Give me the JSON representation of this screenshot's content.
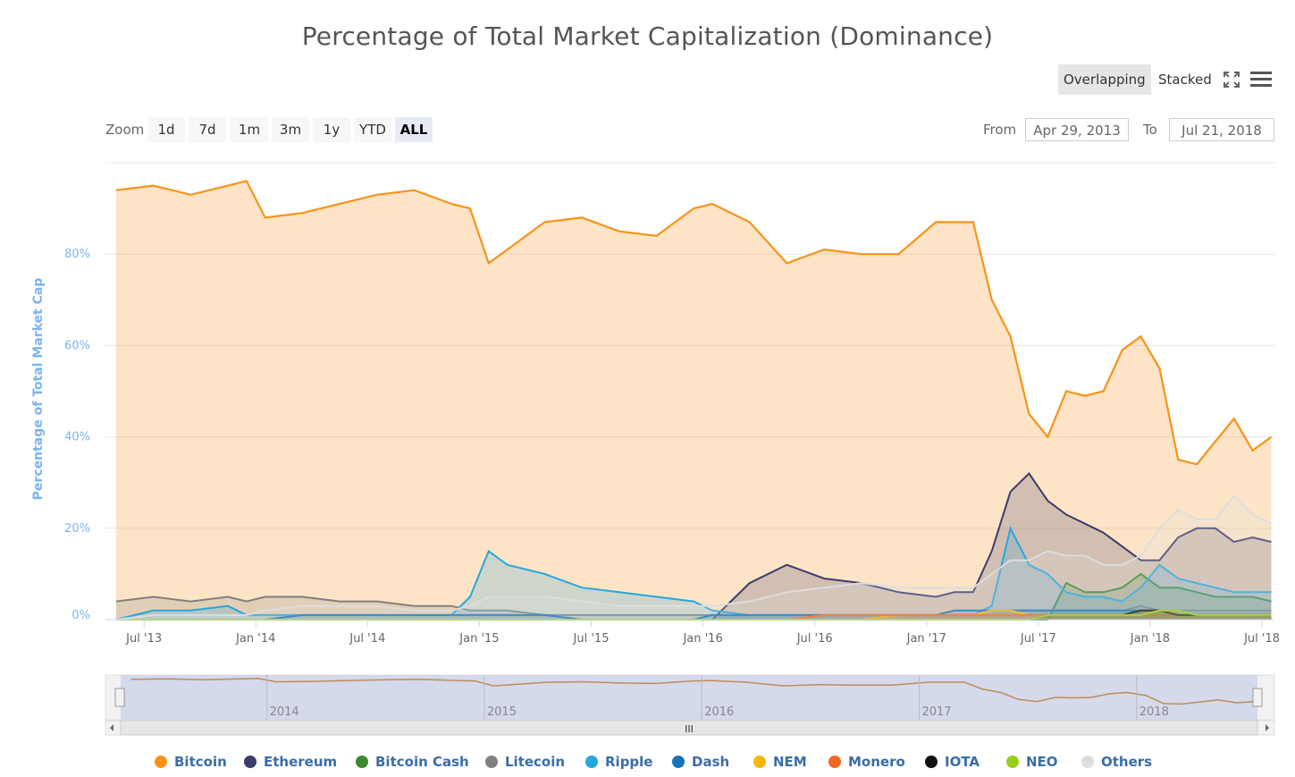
{
  "title": "Percentage of Total Market Capitalization (Dominance)",
  "toolbar": {
    "overlapping": "Overlapping",
    "stacked": "Stacked",
    "active_mode": "Overlapping",
    "fullscreen_icon": "fullscreen-icon",
    "menu_icon": "hamburger-menu-icon"
  },
  "zoom": {
    "label": "Zoom",
    "buttons": [
      "1d",
      "7d",
      "1m",
      "3m",
      "1y",
      "YTD",
      "ALL"
    ],
    "active": "ALL"
  },
  "range": {
    "from_label": "From",
    "from_value": "Apr 29, 2013",
    "to_label": "To",
    "to_value": "Jul 21, 2018"
  },
  "colors": {
    "Bitcoin": "#f7931a",
    "Ethereum": "#3c3c6d",
    "Bitcoin Cash": "#3a8a32",
    "Litecoin": "#808080",
    "Ripple": "#27a6dd",
    "Dash": "#1474bb",
    "NEM": "#f7b512",
    "Monero": "#f26722",
    "IOTA": "#111111",
    "NEO": "#9acd1a",
    "Others": "#dddddd"
  },
  "chart_data": {
    "type": "area",
    "title": "Percentage of Total Market Capitalization (Dominance)",
    "ylabel": "Percentage of Total Market Cap",
    "ylim": [
      0,
      100
    ],
    "yticks": [
      "0%",
      "20%",
      "40%",
      "60%",
      "80%"
    ],
    "xticks": [
      "Jul '13",
      "Jan '14",
      "Jul '14",
      "Jan '15",
      "Jul '15",
      "Jan '16",
      "Jul '16",
      "Jan '17",
      "Jul '17",
      "Jan '18",
      "Jul '18"
    ],
    "navigator_ticks": [
      "2014",
      "2015",
      "2016",
      "2017",
      "2018"
    ],
    "legend_position": "bottom",
    "x": [
      "2013-05",
      "2013-07",
      "2013-09",
      "2013-11",
      "2013-12",
      "2014-01",
      "2014-03",
      "2014-05",
      "2014-07",
      "2014-09",
      "2014-11",
      "2014-12",
      "2015-01",
      "2015-02",
      "2015-04",
      "2015-06",
      "2015-08",
      "2015-10",
      "2015-12",
      "2016-01",
      "2016-03",
      "2016-05",
      "2016-07",
      "2016-09",
      "2016-11",
      "2017-01",
      "2017-02",
      "2017-03",
      "2017-04",
      "2017-05",
      "2017-06",
      "2017-07",
      "2017-08",
      "2017-09",
      "2017-10",
      "2017-11",
      "2017-12",
      "2018-01",
      "2018-02",
      "2018-03",
      "2018-04",
      "2018-05",
      "2018-06",
      "2018-07"
    ],
    "series": [
      {
        "name": "Bitcoin",
        "values": [
          94,
          95,
          93,
          95,
          96,
          88,
          89,
          91,
          93,
          94,
          91,
          90,
          78,
          81,
          87,
          88,
          85,
          84,
          90,
          91,
          87,
          78,
          81,
          80,
          80,
          87,
          87,
          87,
          70,
          62,
          45,
          40,
          50,
          49,
          50,
          59,
          62,
          55,
          35,
          34,
          39,
          44,
          37,
          40
        ]
      },
      {
        "name": "Ethereum",
        "values": [
          0,
          0,
          0,
          0,
          0,
          0,
          0,
          0,
          0,
          0,
          0,
          0,
          0,
          0,
          0,
          0,
          0,
          0,
          0,
          0,
          8,
          12,
          9,
          8,
          6,
          5,
          6,
          6,
          15,
          28,
          32,
          26,
          23,
          21,
          19,
          16,
          13,
          13,
          18,
          20,
          20,
          17,
          18,
          17
        ]
      },
      {
        "name": "Bitcoin Cash",
        "values": [
          0,
          0,
          0,
          0,
          0,
          0,
          0,
          0,
          0,
          0,
          0,
          0,
          0,
          0,
          0,
          0,
          0,
          0,
          0,
          0,
          0,
          0,
          0,
          0,
          0,
          0,
          0,
          0,
          0,
          0,
          0,
          0,
          8,
          6,
          6,
          7,
          10,
          7,
          7,
          6,
          5,
          5,
          5,
          4
        ]
      },
      {
        "name": "Litecoin",
        "values": [
          4,
          5,
          4,
          5,
          4,
          5,
          5,
          4,
          4,
          3,
          3,
          2,
          2,
          2,
          1,
          1,
          1,
          1,
          1,
          1,
          1,
          1,
          1,
          1,
          1,
          1,
          1,
          1,
          2,
          2,
          2,
          2,
          2,
          2,
          2,
          2,
          3,
          2,
          2,
          2,
          2,
          2,
          2,
          2
        ]
      },
      {
        "name": "Ripple",
        "values": [
          0,
          2,
          2,
          3,
          1,
          1,
          1,
          1,
          1,
          1,
          1,
          5,
          15,
          12,
          10,
          7,
          6,
          5,
          4,
          2,
          1,
          1,
          1,
          1,
          1,
          1,
          1,
          1,
          3,
          20,
          12,
          10,
          6,
          5,
          5,
          4,
          7,
          12,
          9,
          8,
          7,
          6,
          6,
          6
        ]
      },
      {
        "name": "Dash",
        "values": [
          0,
          0,
          0,
          0,
          0,
          0,
          1,
          1,
          1,
          1,
          1,
          1,
          1,
          1,
          1,
          0,
          0,
          0,
          0,
          1,
          1,
          1,
          1,
          1,
          1,
          1,
          2,
          2,
          2,
          2,
          2,
          2,
          2,
          2,
          2,
          2,
          2,
          2,
          1,
          1,
          1,
          1,
          1,
          1
        ]
      },
      {
        "name": "NEM",
        "values": [
          0,
          0,
          0,
          0,
          0,
          0,
          0,
          0,
          0,
          0,
          0,
          0,
          0,
          0,
          0,
          0,
          0,
          0,
          0,
          0,
          0,
          0,
          0,
          0,
          1,
          1,
          1,
          1,
          2,
          2,
          1,
          1,
          1,
          1,
          1,
          1,
          2,
          2,
          1,
          1,
          1,
          1,
          1,
          1
        ]
      },
      {
        "name": "Monero",
        "values": [
          0,
          0,
          0,
          0,
          0,
          0,
          0,
          0,
          0,
          0,
          0,
          0,
          0,
          0,
          0,
          0,
          0,
          0,
          0,
          0,
          0,
          0,
          1,
          1,
          1,
          1,
          1,
          1,
          1,
          1,
          1,
          1,
          1,
          1,
          1,
          1,
          1,
          1,
          1,
          1,
          1,
          1,
          1,
          1
        ]
      },
      {
        "name": "IOTA",
        "values": [
          0,
          0,
          0,
          0,
          0,
          0,
          0,
          0,
          0,
          0,
          0,
          0,
          0,
          0,
          0,
          0,
          0,
          0,
          0,
          0,
          0,
          0,
          0,
          0,
          0,
          0,
          0,
          0,
          0,
          0,
          0,
          1,
          1,
          1,
          1,
          1,
          2,
          2,
          1,
          1,
          1,
          1,
          1,
          1
        ]
      },
      {
        "name": "NEO",
        "values": [
          0,
          0,
          0,
          0,
          0,
          0,
          0,
          0,
          0,
          0,
          0,
          0,
          0,
          0,
          0,
          0,
          0,
          0,
          0,
          0,
          0,
          0,
          0,
          0,
          0,
          0,
          0,
          0,
          0,
          0,
          0,
          1,
          1,
          1,
          1,
          1,
          1,
          2,
          2,
          1,
          1,
          1,
          1,
          1
        ]
      },
      {
        "name": "Others",
        "values": [
          0,
          1,
          1,
          1,
          1,
          2,
          3,
          3,
          3,
          2,
          2,
          3,
          5,
          5,
          5,
          4,
          3,
          3,
          3,
          3,
          4,
          6,
          7,
          8,
          7,
          7,
          7,
          7,
          10,
          13,
          13,
          15,
          14,
          14,
          12,
          12,
          14,
          20,
          24,
          22,
          22,
          27,
          23,
          21
        ]
      }
    ]
  },
  "legend": [
    "Bitcoin",
    "Ethereum",
    "Bitcoin Cash",
    "Litecoin",
    "Ripple",
    "Dash",
    "NEM",
    "Monero",
    "IOTA",
    "NEO",
    "Others"
  ]
}
